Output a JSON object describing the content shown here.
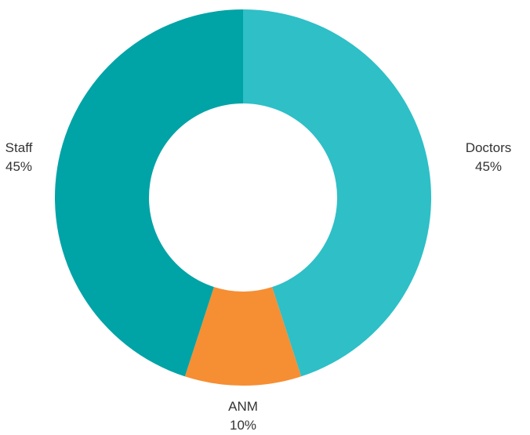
{
  "chart_data": {
    "type": "pie",
    "variant": "donut",
    "start": "12 o'clock, clockwise",
    "slices": [
      {
        "label": "Doctors",
        "value": 45,
        "value_label": "45%",
        "color": "#2EBFC7",
        "label_side": "right"
      },
      {
        "label": "ANM",
        "value": 10,
        "value_label": "10%",
        "color": "#F68E33",
        "label_side": "bottom"
      },
      {
        "label": "Staff",
        "value": 45,
        "value_label": "45%",
        "color": "#00A3A6",
        "label_side": "left"
      }
    ],
    "legend": "none",
    "grid": false
  }
}
